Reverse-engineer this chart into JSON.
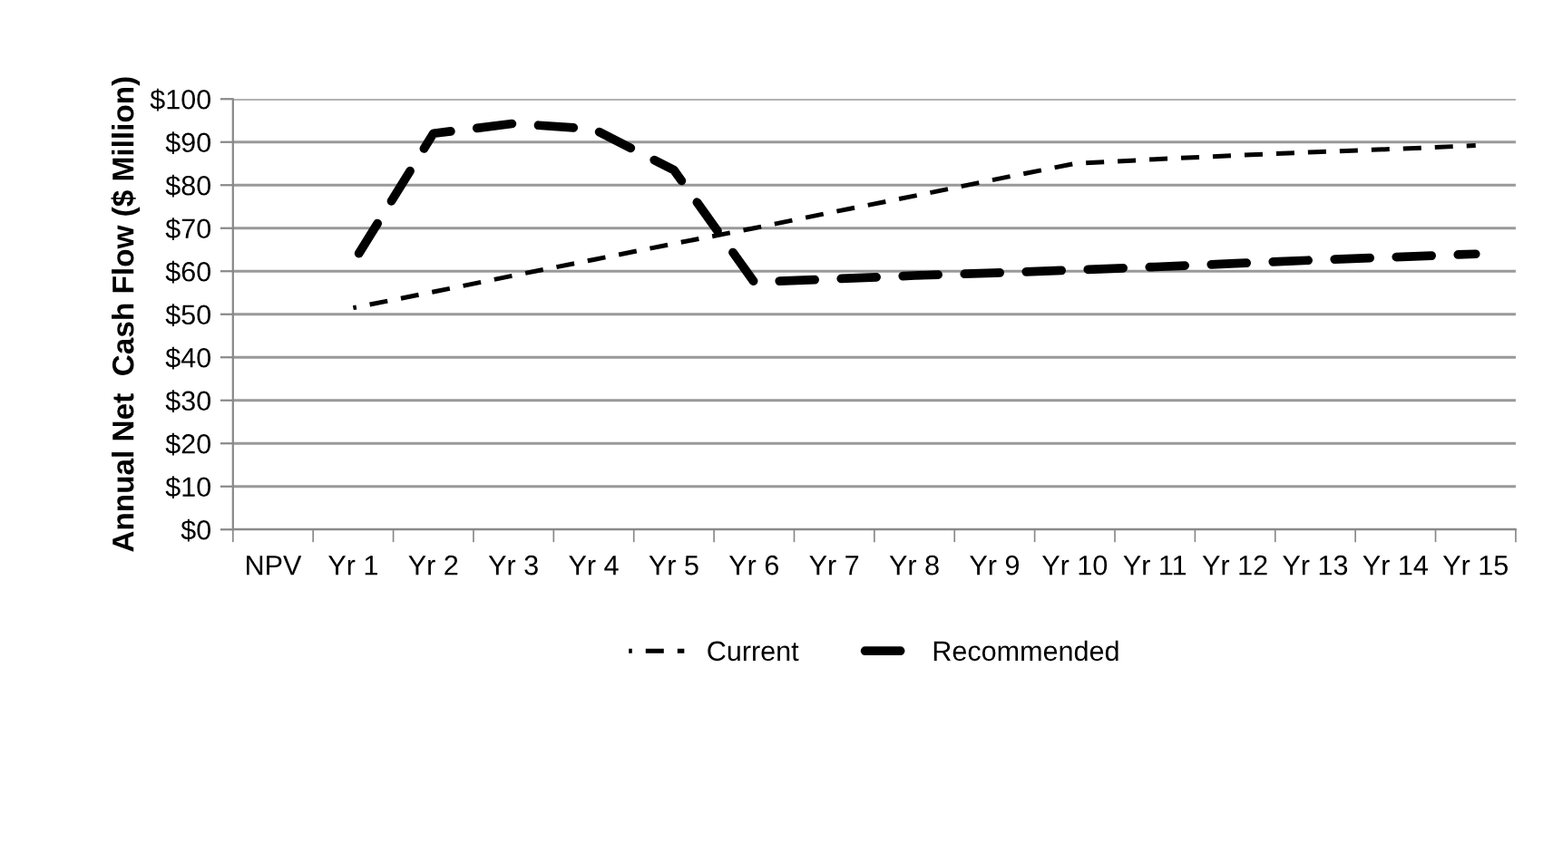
{
  "chart_data": {
    "type": "line",
    "ylabel": "Annual Net  Cash Flow ($ Million)",
    "categories": [
      "NPV",
      "Yr 1",
      "Yr 2",
      "Yr 3",
      "Yr 4",
      "Yr 5",
      "Yr 6",
      "Yr 7",
      "Yr 8",
      "Yr 9",
      "Yr 10",
      "Yr 11",
      "Yr 12",
      "Yr 13",
      "Yr 14",
      "Yr 15"
    ],
    "series": [
      {
        "name": "Current",
        "color": "#000000",
        "line_style": "dashed",
        "values": [
          null,
          51.5,
          55.2,
          59,
          62.7,
          66.4,
          70,
          73.8,
          77.5,
          81.3,
          85,
          86,
          86.9,
          87.7,
          88.4,
          89.2
        ]
      },
      {
        "name": "Recommended",
        "color": "#000000",
        "line_style": "dashed",
        "values": [
          null,
          62,
          92,
          94.3,
          93,
          83.5,
          57.5,
          58.2,
          59,
          59.6,
          60.3,
          61,
          61.8,
          62.6,
          63.3,
          64
        ]
      }
    ],
    "ylim": [
      0,
      100
    ],
    "yticks": [
      {
        "value": 0,
        "label": "$0"
      },
      {
        "value": 10,
        "label": "$10"
      },
      {
        "value": 20,
        "label": "$20"
      },
      {
        "value": 30,
        "label": "$30"
      },
      {
        "value": 40,
        "label": "$40"
      },
      {
        "value": 50,
        "label": "$50"
      },
      {
        "value": 60,
        "label": "$60"
      },
      {
        "value": 70,
        "label": "$70"
      },
      {
        "value": 80,
        "label": "$80"
      },
      {
        "value": 90,
        "label": "$90"
      },
      {
        "value": 100,
        "label": "$100"
      }
    ],
    "grid": "y",
    "legend": "bottom",
    "marker": "none"
  }
}
